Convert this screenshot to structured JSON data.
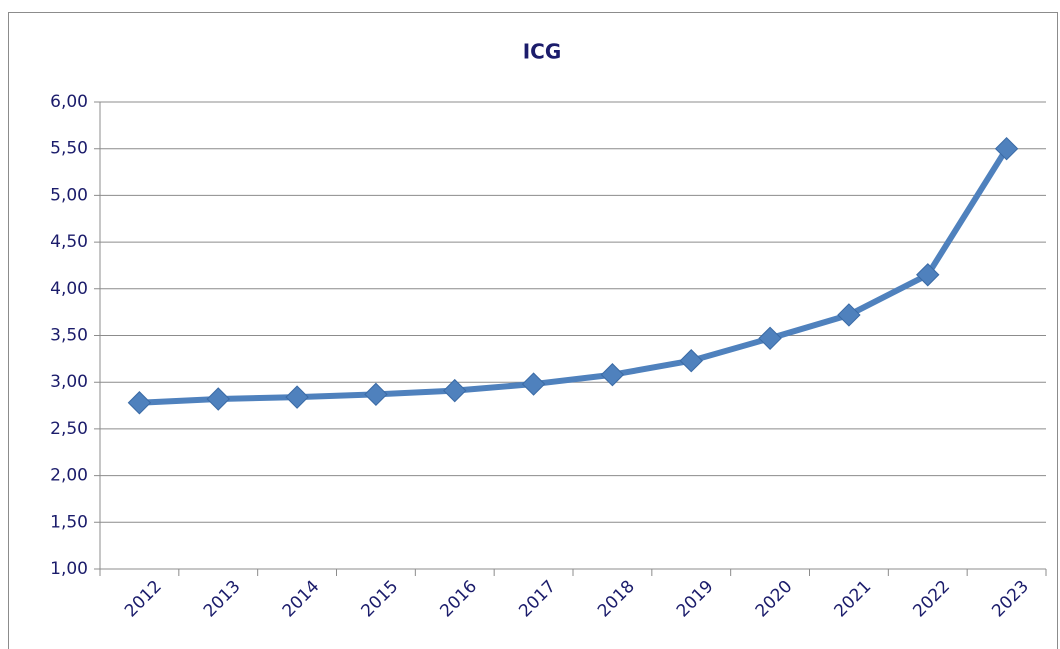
{
  "chart_data": {
    "type": "line",
    "title": "ICG",
    "categories": [
      "2012",
      "2013",
      "2014",
      "2015",
      "2016",
      "2017",
      "2018",
      "2019",
      "2020",
      "2021",
      "2022",
      "2023"
    ],
    "values": [
      2.78,
      2.82,
      2.84,
      2.87,
      2.91,
      2.98,
      3.08,
      3.23,
      3.47,
      3.72,
      4.15,
      5.5
    ],
    "color": "#4f81bd",
    "ylim": [
      1,
      6
    ],
    "yticks": [
      {
        "value": 1,
        "label": "1,00"
      },
      {
        "value": 1.5,
        "label": "1,50"
      },
      {
        "value": 2,
        "label": "2,00"
      },
      {
        "value": 2.5,
        "label": "2,50"
      },
      {
        "value": 3,
        "label": "3,00"
      },
      {
        "value": 3.5,
        "label": "3,50"
      },
      {
        "value": 4,
        "label": "4,00"
      },
      {
        "value": 4.5,
        "label": "4,50"
      },
      {
        "value": 5,
        "label": "5,00"
      },
      {
        "value": 5.5,
        "label": "5,50"
      },
      {
        "value": 6,
        "label": "6,00"
      }
    ],
    "grid": true
  }
}
